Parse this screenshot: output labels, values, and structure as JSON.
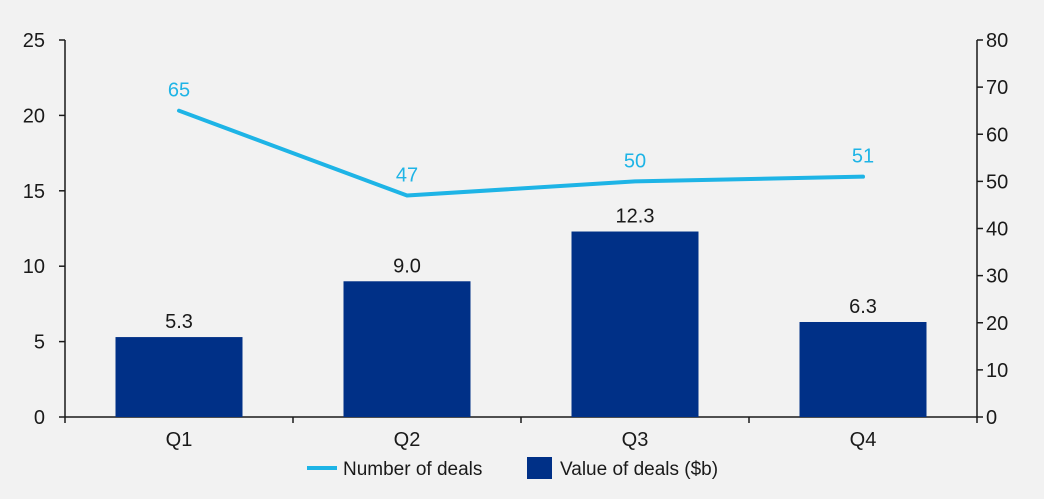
{
  "chart_data": {
    "type": "bar+line",
    "categories": [
      "Q1",
      "Q2",
      "Q3",
      "Q4"
    ],
    "series": [
      {
        "name": "Value of deals ($b)",
        "type": "bar",
        "axis": "left",
        "values": [
          5.3,
          9.0,
          12.3,
          6.3
        ],
        "labels": [
          "5.3",
          "9.0",
          "12.3",
          "6.3"
        ],
        "color": "#003087"
      },
      {
        "name": "Number of deals",
        "type": "line",
        "axis": "right",
        "values": [
          65,
          47,
          50,
          51
        ],
        "labels": [
          "65",
          "47",
          "50",
          "51"
        ],
        "color": "#1eb4e6"
      }
    ],
    "y_left": {
      "min": 0,
      "max": 25,
      "step": 5,
      "ticks": [
        "0",
        "5",
        "10",
        "15",
        "20",
        "25"
      ]
    },
    "y_right": {
      "min": 0,
      "max": 80,
      "step": 10,
      "ticks": [
        "0",
        "10",
        "20",
        "30",
        "40",
        "50",
        "60",
        "70",
        "80"
      ]
    },
    "legend": {
      "position": "bottom",
      "items": [
        {
          "label": "Number of deals",
          "kind": "line",
          "color": "#1eb4e6"
        },
        {
          "label": "Value of deals ($b)",
          "kind": "box",
          "color": "#003087"
        }
      ]
    },
    "grid": false,
    "axis_color": "#1a1a1a",
    "background": "#f2f2f2"
  }
}
